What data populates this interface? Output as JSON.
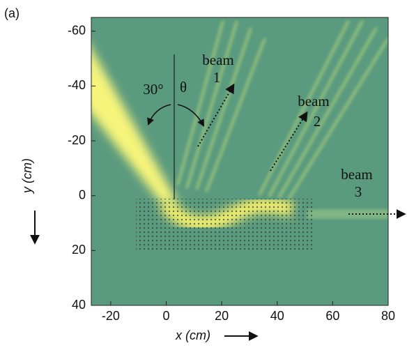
{
  "chart_data": {
    "type": "field",
    "panel_label": "(a)",
    "xlabel": "x (cm)",
    "ylabel": "y (cm)",
    "xlim": [
      -27,
      80
    ],
    "ylim": [
      -65,
      40
    ],
    "xticks": [
      -20,
      0,
      20,
      40,
      60,
      80
    ],
    "yticks": [
      -60,
      -40,
      -20,
      0,
      20,
      40
    ],
    "y_inverted": true,
    "annotations": [
      "30°",
      "θ",
      "beam",
      "1",
      "beam",
      "2",
      "beam",
      "3"
    ]
  }
}
